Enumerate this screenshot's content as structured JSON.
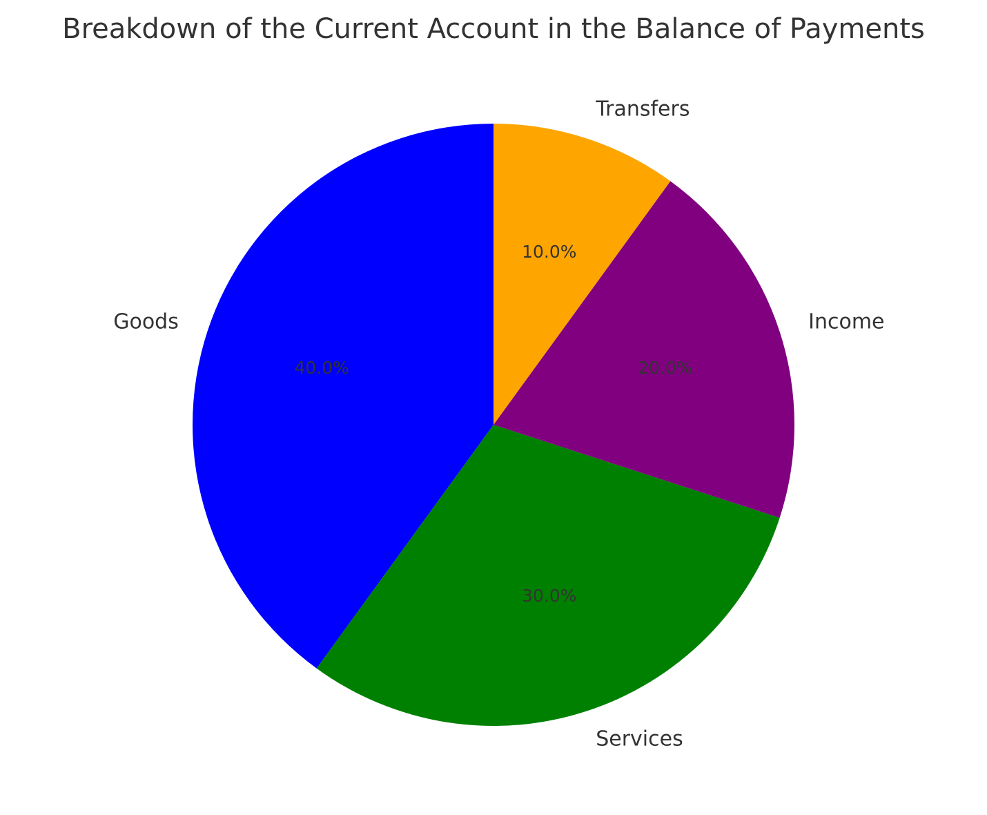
{
  "chart_data": {
    "type": "pie",
    "title": "Breakdown of the Current Account in the Balance of Payments",
    "categories": [
      "Goods",
      "Services",
      "Income",
      "Transfers"
    ],
    "values": [
      40,
      30,
      20,
      10
    ],
    "percent_labels": [
      "40.0%",
      "30.0%",
      "20.0%",
      "10.0%"
    ],
    "colors": [
      "#0000ff",
      "#008000",
      "#800080",
      "#ffa500"
    ],
    "start_angle_deg": 90,
    "direction": "counterclockwise",
    "legend": "none"
  }
}
